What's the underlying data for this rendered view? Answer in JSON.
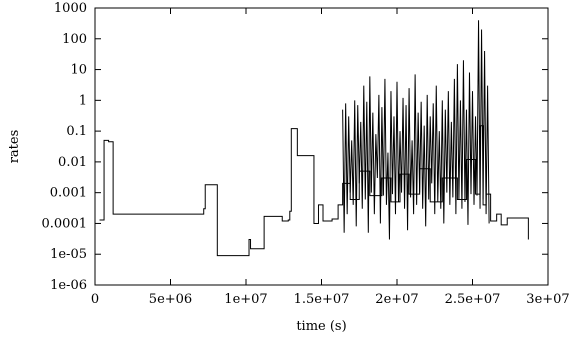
{
  "chart_data": {
    "type": "line",
    "title": "",
    "xlabel": "time (s)",
    "ylabel": "rates",
    "xlim": [
      0,
      30000000
    ],
    "ylim": [
      1e-06,
      1000
    ],
    "yscale": "log",
    "grid": false,
    "x_tick_labels": [
      "0",
      "5e+06",
      "1e+07",
      "1.5e+07",
      "2e+07",
      "2.5e+07",
      "3e+07"
    ],
    "x_tick_values": [
      0,
      5000000,
      10000000,
      15000000,
      20000000,
      25000000,
      30000000
    ],
    "y_tick_labels": [
      "1e-06",
      "1e-05",
      "0.0001",
      "0.001",
      "0.01",
      "0.1",
      "1",
      "10",
      "100",
      "1000"
    ],
    "y_tick_values": [
      1e-06,
      1e-05,
      0.0001,
      0.001,
      0.01,
      0.1,
      1,
      10,
      100,
      1000
    ],
    "series": [
      {
        "color": "#000000",
        "step": true,
        "x": [
          300000,
          600000,
          900000,
          1200000,
          7100000,
          7200000,
          7300000,
          8100000,
          10200000,
          10300000,
          11200000,
          12400000,
          12800000,
          12900000,
          13000000,
          13400000,
          14300000,
          14500000,
          14800000,
          15100000,
          15700000,
          16100000,
          16400000,
          16900000,
          17500000,
          18200000,
          19000000,
          19600000,
          20200000,
          20800000,
          21500000,
          22200000,
          23000000,
          24000000,
          24600000,
          25200000,
          25500000,
          25700000,
          25900000,
          26200000,
          26600000,
          26900000,
          27300000,
          28000000,
          28700000
        ],
        "y": [
          0.00013,
          0.05,
          0.045,
          0.0002,
          0.0002,
          0.0003,
          0.0018,
          9e-06,
          3e-05,
          1.5e-05,
          0.00017,
          0.00012,
          0.00013,
          0.00025,
          0.12,
          0.016,
          0.016,
          0.0001,
          0.0004,
          0.00012,
          0.00014,
          0.0004,
          0.002,
          0.0006,
          0.005,
          0.0008,
          0.003,
          0.0005,
          0.004,
          0.0009,
          0.006,
          0.0005,
          0.003,
          0.0006,
          0.012,
          0.0009,
          0.15,
          0.0004,
          0.0009,
          0.00012,
          0.0002,
          9e-05,
          0.00015,
          0.00015,
          3e-05
        ]
      },
      {
        "color": "#000000",
        "step": false,
        "x": [
          16400000,
          16500000,
          16600000,
          16700000,
          16800000,
          16900000,
          17000000,
          17100000,
          17200000,
          17300000,
          17400000,
          17500000,
          17600000,
          17700000,
          17800000,
          17900000,
          18000000,
          18100000,
          18200000,
          18300000,
          18400000,
          18500000,
          18600000,
          18700000,
          18800000,
          18900000,
          19000000,
          19100000,
          19200000,
          19300000,
          19400000,
          19500000,
          19600000,
          19700000,
          19800000,
          19900000,
          20000000,
          20100000,
          20200000,
          20300000,
          20400000,
          20500000,
          20600000,
          20700000,
          20800000,
          20900000,
          21000000,
          21100000,
          21200000,
          21300000,
          21400000,
          21500000,
          21600000,
          21700000,
          21800000,
          21900000,
          22000000,
          22100000,
          22200000,
          22300000,
          22400000,
          22500000,
          22600000,
          22700000,
          22800000,
          22900000,
          23000000,
          23100000,
          23200000,
          23300000,
          23400000,
          23500000,
          23600000,
          23700000,
          23800000,
          23900000,
          24000000,
          24100000,
          24200000,
          24300000,
          24400000,
          24500000,
          24600000,
          24700000,
          24800000,
          24900000,
          25000000,
          25100000,
          25200000,
          25300000,
          25400000,
          25500000,
          25600000,
          25700000,
          25800000,
          25900000,
          26000000,
          26100000
        ],
        "y": [
          0.5,
          5e-05,
          0.8,
          0.0002,
          0.3,
          0.001,
          0.05,
          0.0004,
          1.0,
          8e-05,
          0.7,
          0.002,
          0.2,
          0.0003,
          3.0,
          0.0006,
          0.9,
          5e-05,
          6.0,
          0.001,
          0.4,
          0.0002,
          0.08,
          0.003,
          1.5,
          0.0001,
          0.6,
          0.0008,
          5.0,
          0.0004,
          0.02,
          3e-05,
          2.0,
          0.0009,
          0.3,
          0.0002,
          4.0,
          0.0005,
          0.1,
          0.001,
          1.2,
          0.0003,
          0.7,
          6e-05,
          2.5,
          0.0007,
          0.05,
          0.0002,
          7.0,
          0.0004,
          0.4,
          0.001,
          0.9,
          0.0003,
          0.15,
          8e-05,
          1.5,
          0.0006,
          0.3,
          0.002,
          0.8,
          0.0002,
          3.0,
          0.0005,
          0.1,
          0.0003,
          1.0,
          0.0001,
          0.5,
          0.001,
          2.0,
          0.0004,
          0.2,
          0.0007,
          5.0,
          0.0002,
          15.0,
          0.0006,
          1.0,
          0.0003,
          20.0,
          0.0005,
          0.5,
          9e-05,
          8.0,
          0.0009,
          2.0,
          0.0004,
          0.3,
          0.0008,
          400.0,
          0.0003,
          200.0,
          0.0006,
          40.0,
          0.0002,
          3.0,
          0.0001
        ]
      }
    ]
  }
}
